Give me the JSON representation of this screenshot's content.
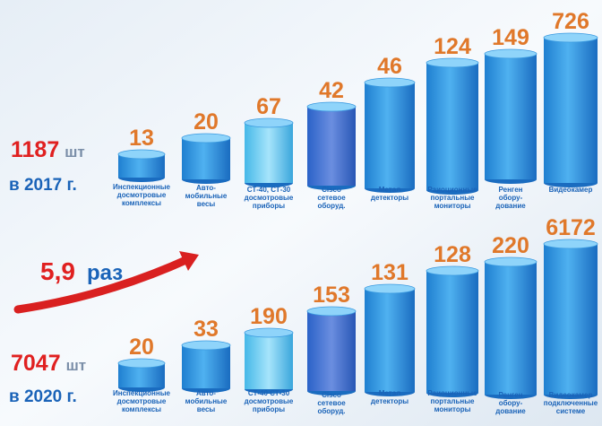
{
  "rows": [
    {
      "total": "1187",
      "unit": "шт",
      "year": "в 2017 г.",
      "items": [
        {
          "value": "13",
          "label": [
            "Инспекционные",
            "досмотровые",
            "комплексы"
          ]
        },
        {
          "value": "20",
          "label": [
            "Авто-",
            "мобильные",
            "весы"
          ]
        },
        {
          "value": "67",
          "label": [
            "СТ-40, СТ-30",
            "досмотровые",
            "приборы"
          ]
        },
        {
          "value": "42",
          "label": [
            "Cisco",
            "сетевое",
            "оборуд."
          ]
        },
        {
          "value": "46",
          "label": [
            "Метал",
            "детекторы"
          ]
        },
        {
          "value": "124",
          "label": [
            "Раиоционные",
            "портальные",
            "мониторы"
          ]
        },
        {
          "value": "149",
          "label": [
            "Ренген",
            "обору-",
            "дование"
          ]
        },
        {
          "value": "726",
          "label": [
            "Видеокамер"
          ]
        }
      ]
    },
    {
      "total": "7047",
      "unit": "шт",
      "year": "в 2020 г.",
      "items": [
        {
          "value": "20",
          "label": [
            "Инспекционные",
            "досмотровые",
            "комплексы"
          ]
        },
        {
          "value": "33",
          "label": [
            "Авто-",
            "мобильные",
            "весы"
          ]
        },
        {
          "value": "190",
          "label": [
            "СТ-40 СТ-30",
            "досмотровые",
            "приборы"
          ]
        },
        {
          "value": "153",
          "label": [
            "Cisco",
            "сетевое",
            "оборуд."
          ]
        },
        {
          "value": "131",
          "label": [
            "Метал",
            "детекторы"
          ]
        },
        {
          "value": "128",
          "label": [
            "Раиоционные",
            "портальные",
            "мониторы"
          ]
        },
        {
          "value": "220",
          "label": [
            "Ренген",
            "обору-",
            "дование"
          ]
        },
        {
          "value": "6172",
          "label": [
            "Видеокамер",
            "подключенные",
            "системе"
          ]
        }
      ]
    }
  ],
  "growth": {
    "value": "5,9",
    "unit": "раз"
  }
}
